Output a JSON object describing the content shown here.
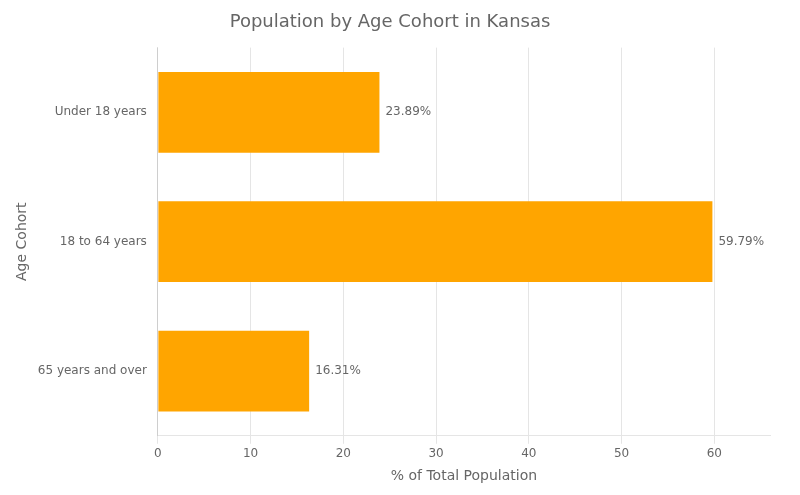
{
  "chart_data": {
    "type": "bar",
    "orientation": "horizontal",
    "title": "Population by Age Cohort in Kansas",
    "xlabel": "% of Total Population",
    "ylabel": "Age Cohort",
    "categories": [
      "Under 18 years",
      "18 to 64 years",
      "65 years and over"
    ],
    "values": [
      23.89,
      59.79,
      16.31
    ],
    "value_labels": [
      "23.89%",
      "59.79%",
      "16.31%"
    ],
    "data_labels": true,
    "color": "#FFA500",
    "xlim": [
      0,
      66
    ],
    "xticks": [
      0,
      10,
      20,
      30,
      40,
      50,
      60
    ],
    "grid": true
  }
}
